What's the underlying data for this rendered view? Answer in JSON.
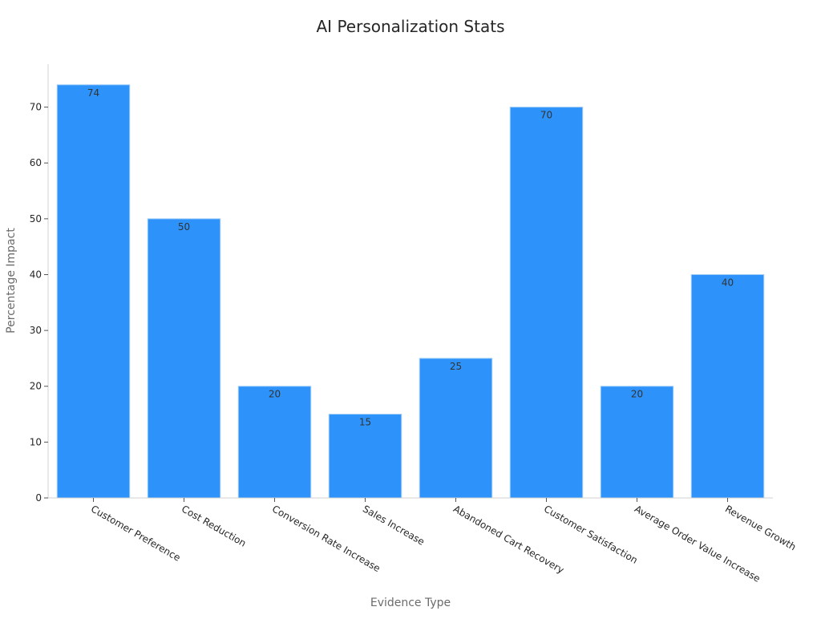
{
  "chart_data": {
    "type": "bar",
    "title": "AI Personalization Stats",
    "xlabel": "Evidence Type",
    "ylabel": "Percentage Impact",
    "categories": [
      "Customer Preference",
      "Cost Reduction",
      "Conversion Rate Increase",
      "Sales Increase",
      "Abandoned Cart Recovery",
      "Customer Satisfaction",
      "Average Order Value Increase",
      "Revenue Growth"
    ],
    "values": [
      74,
      50,
      20,
      15,
      25,
      70,
      20,
      40
    ],
    "data_labels": [
      "74",
      "50",
      "20",
      "15",
      "25",
      "70",
      "20",
      "40"
    ],
    "yticks": [
      0,
      10,
      20,
      30,
      40,
      50,
      60,
      70
    ],
    "ylim": [
      0,
      77.7
    ],
    "grid": false,
    "legend": "none",
    "bar_color": "#2d93fa",
    "bar_edge_color": "#9ccbf8"
  }
}
